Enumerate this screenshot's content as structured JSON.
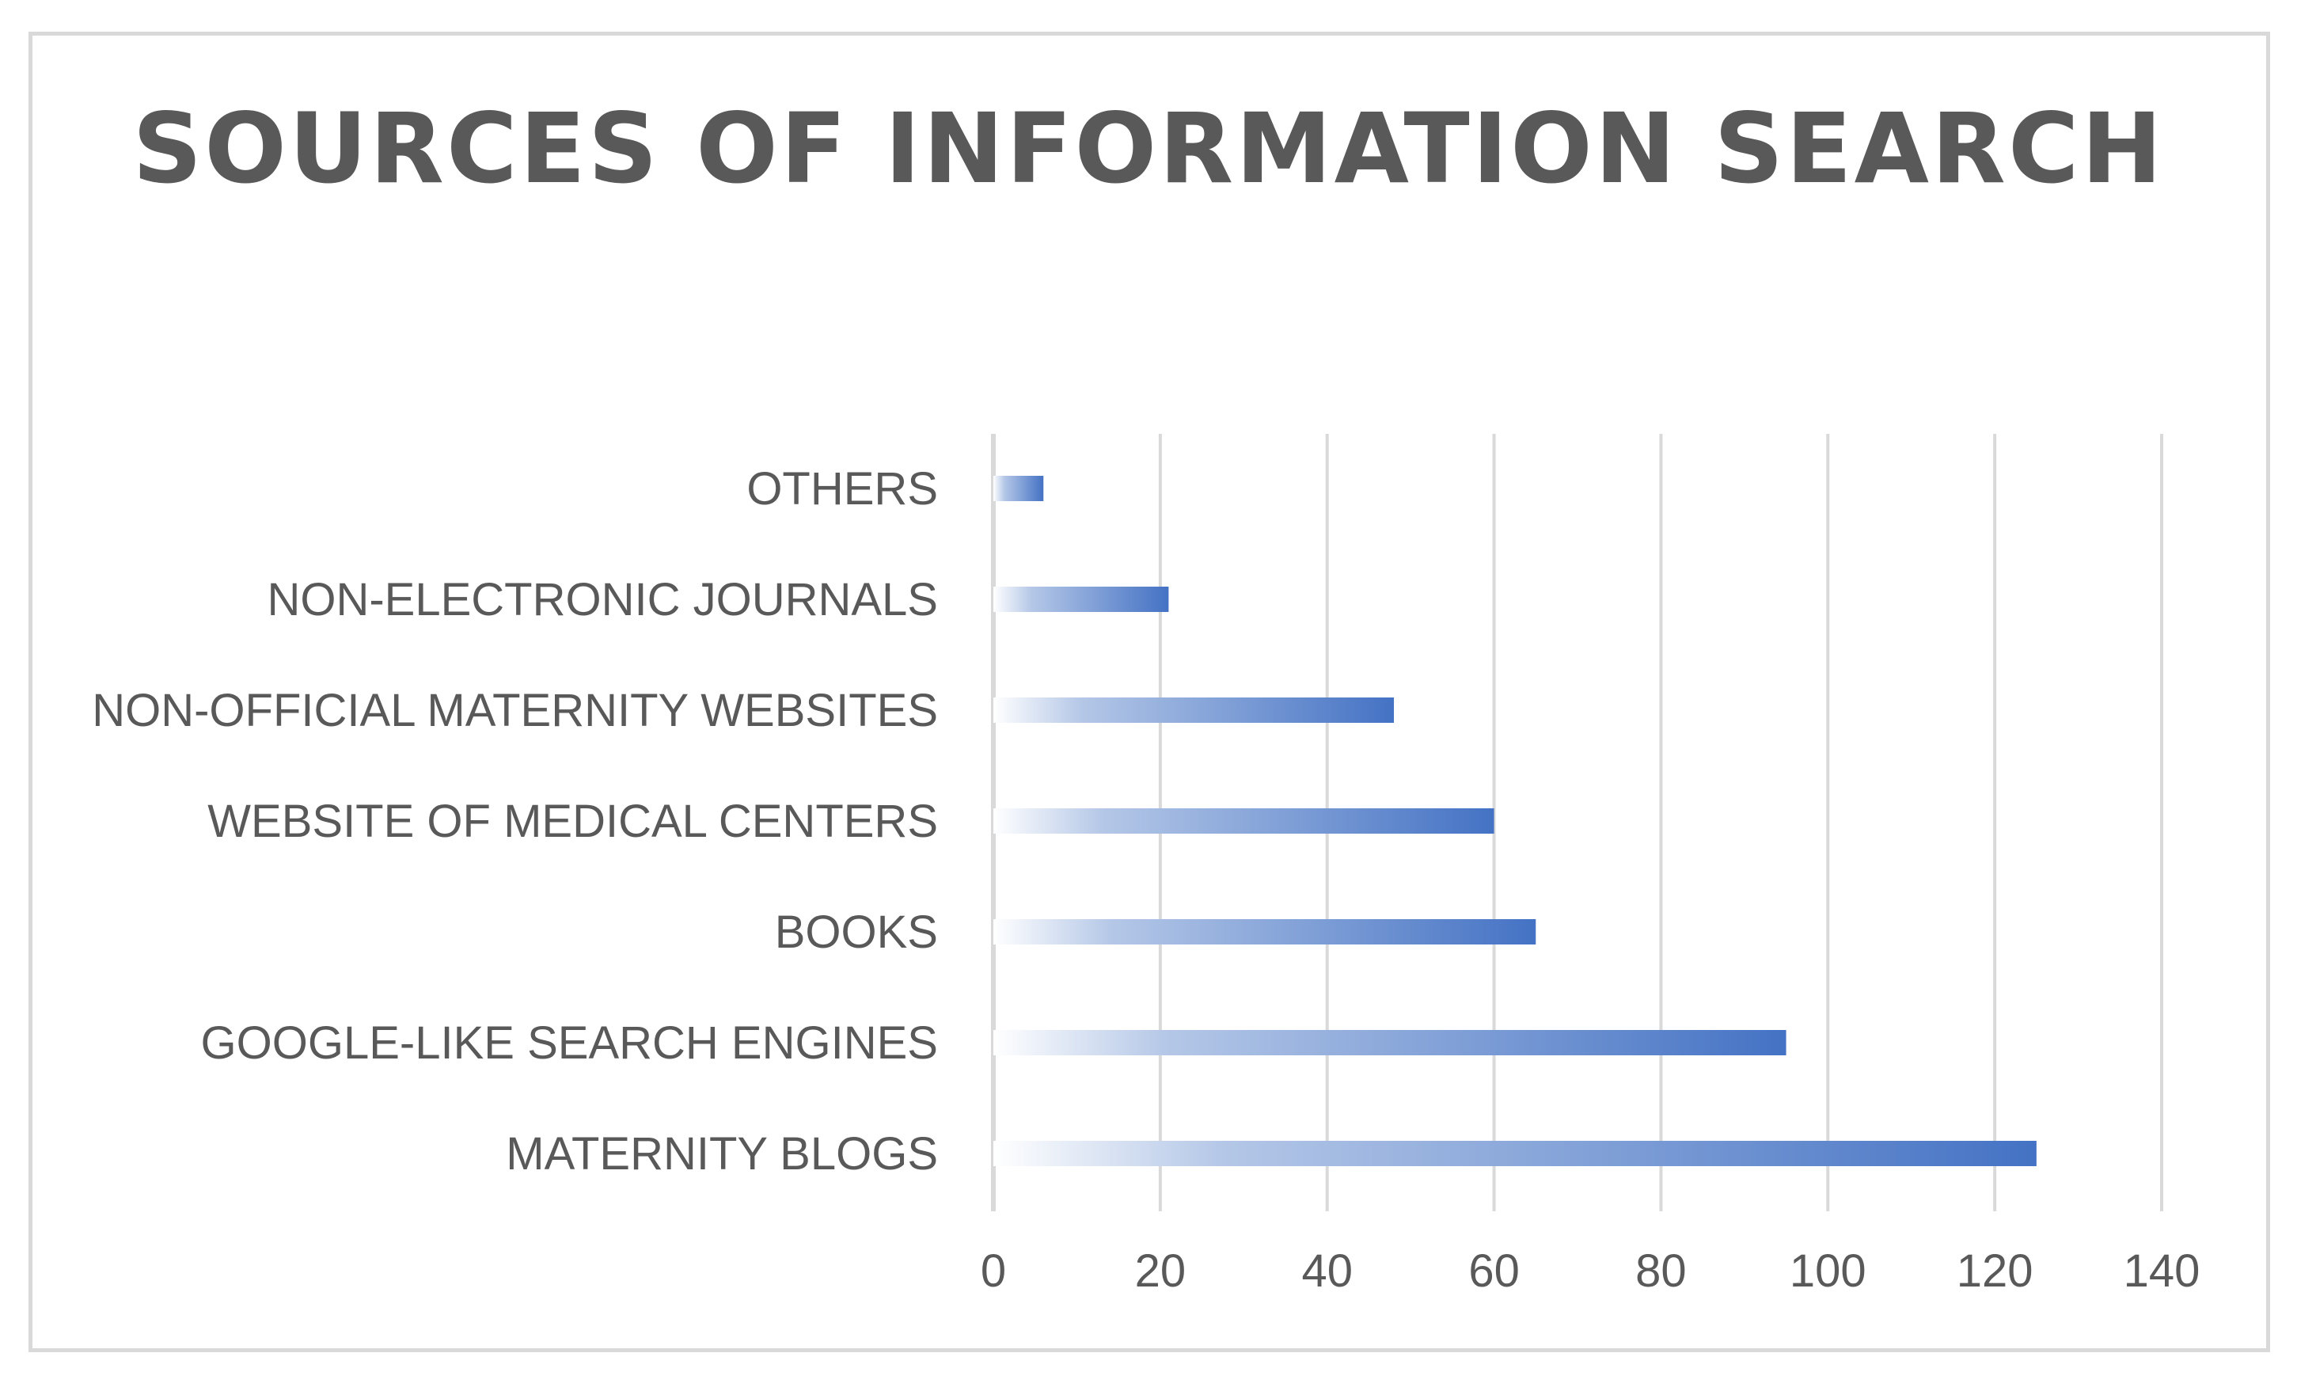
{
  "chart_data": {
    "type": "bar",
    "orientation": "horizontal",
    "title": "SOURCES OF INFORMATION SEARCH",
    "xlabel": "",
    "ylabel": "",
    "categories": [
      "MATERNITY BLOGS",
      "GOOGLE-LIKE SEARCH ENGINES",
      "BOOKS",
      "WEBSITE OF MEDICAL CENTERS",
      "NON-OFFICIAL MATERNITY WEBSITES",
      "NON-ELECTRONIC JOURNALS",
      "OTHERS"
    ],
    "values": [
      125,
      95,
      65,
      60,
      48,
      21,
      6
    ],
    "xlim": [
      0,
      140
    ],
    "xticks": [
      "0",
      "20",
      "40",
      "60",
      "80",
      "100",
      "120",
      "140"
    ],
    "grid": true,
    "legend": "none",
    "colors": {
      "bar": "#4472c4",
      "bar_fade": "#ffffff",
      "grid": "#d9d9d9",
      "text": "#595959",
      "title": "#595959"
    }
  }
}
